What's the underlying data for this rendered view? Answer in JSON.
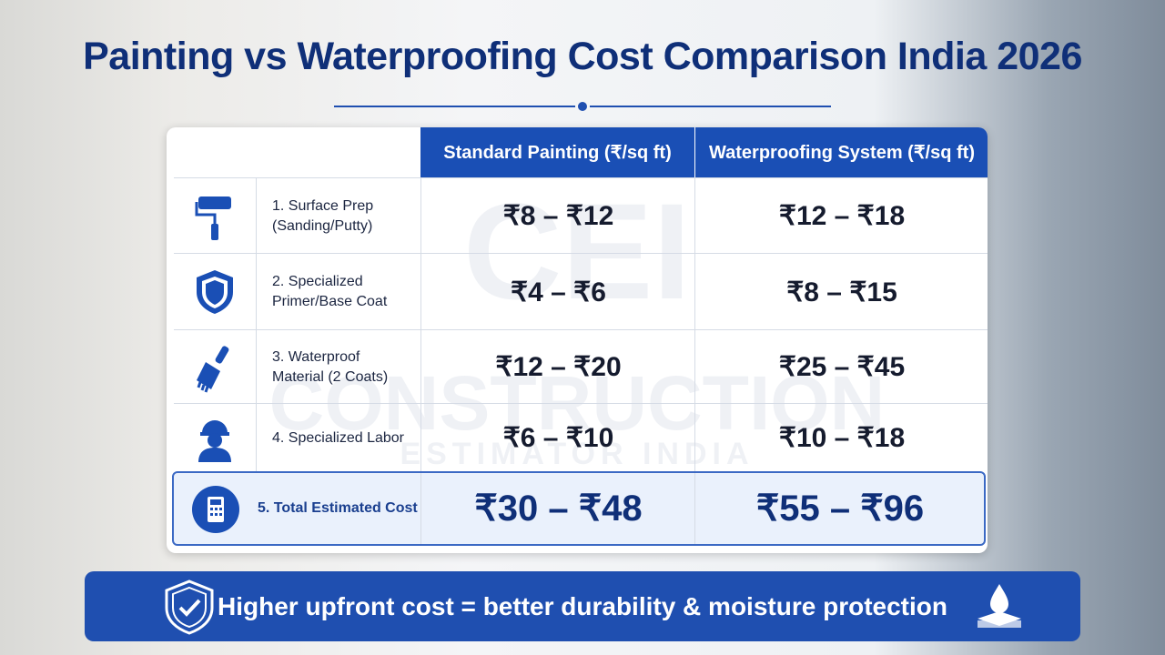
{
  "header": {
    "title": "Painting vs Waterproofing Cost Comparison India 2026"
  },
  "table": {
    "columns": [
      "Standard Painting (₹/sq ft)",
      "Waterproofing System (₹/sq ft)"
    ],
    "rows": [
      {
        "label": [
          "1. Surface Prep",
          "(Sanding/Putty)"
        ],
        "standard": "₹8 – ₹12",
        "waterproofing": "₹12 – ₹18"
      },
      {
        "label": [
          "2. Specialized",
          "Primer/Base Coat"
        ],
        "standard": "₹4 – ₹6",
        "waterproofing": "₹8 – ₹15"
      },
      {
        "label": [
          "3. Waterproof",
          "Material (2 Coats)"
        ],
        "standard": "₹12 – ₹20",
        "waterproofing": "₹25 – ₹45"
      },
      {
        "label": [
          "4. Specialized Labor"
        ],
        "standard": "₹6 – ₹10",
        "waterproofing": "₹10 – ₹18"
      }
    ],
    "total": {
      "label": "5. Total Estimated Cost",
      "standard": "₹30 – ₹48",
      "waterproofing": "₹55 – ₹96"
    }
  },
  "watermark": {
    "logo": "CEI",
    "line1": "CONSTRUCTION",
    "line2": "ESTIMATOR INDIA"
  },
  "footer": {
    "text": "Higher upfront cost = better durability & moisture protection"
  }
}
